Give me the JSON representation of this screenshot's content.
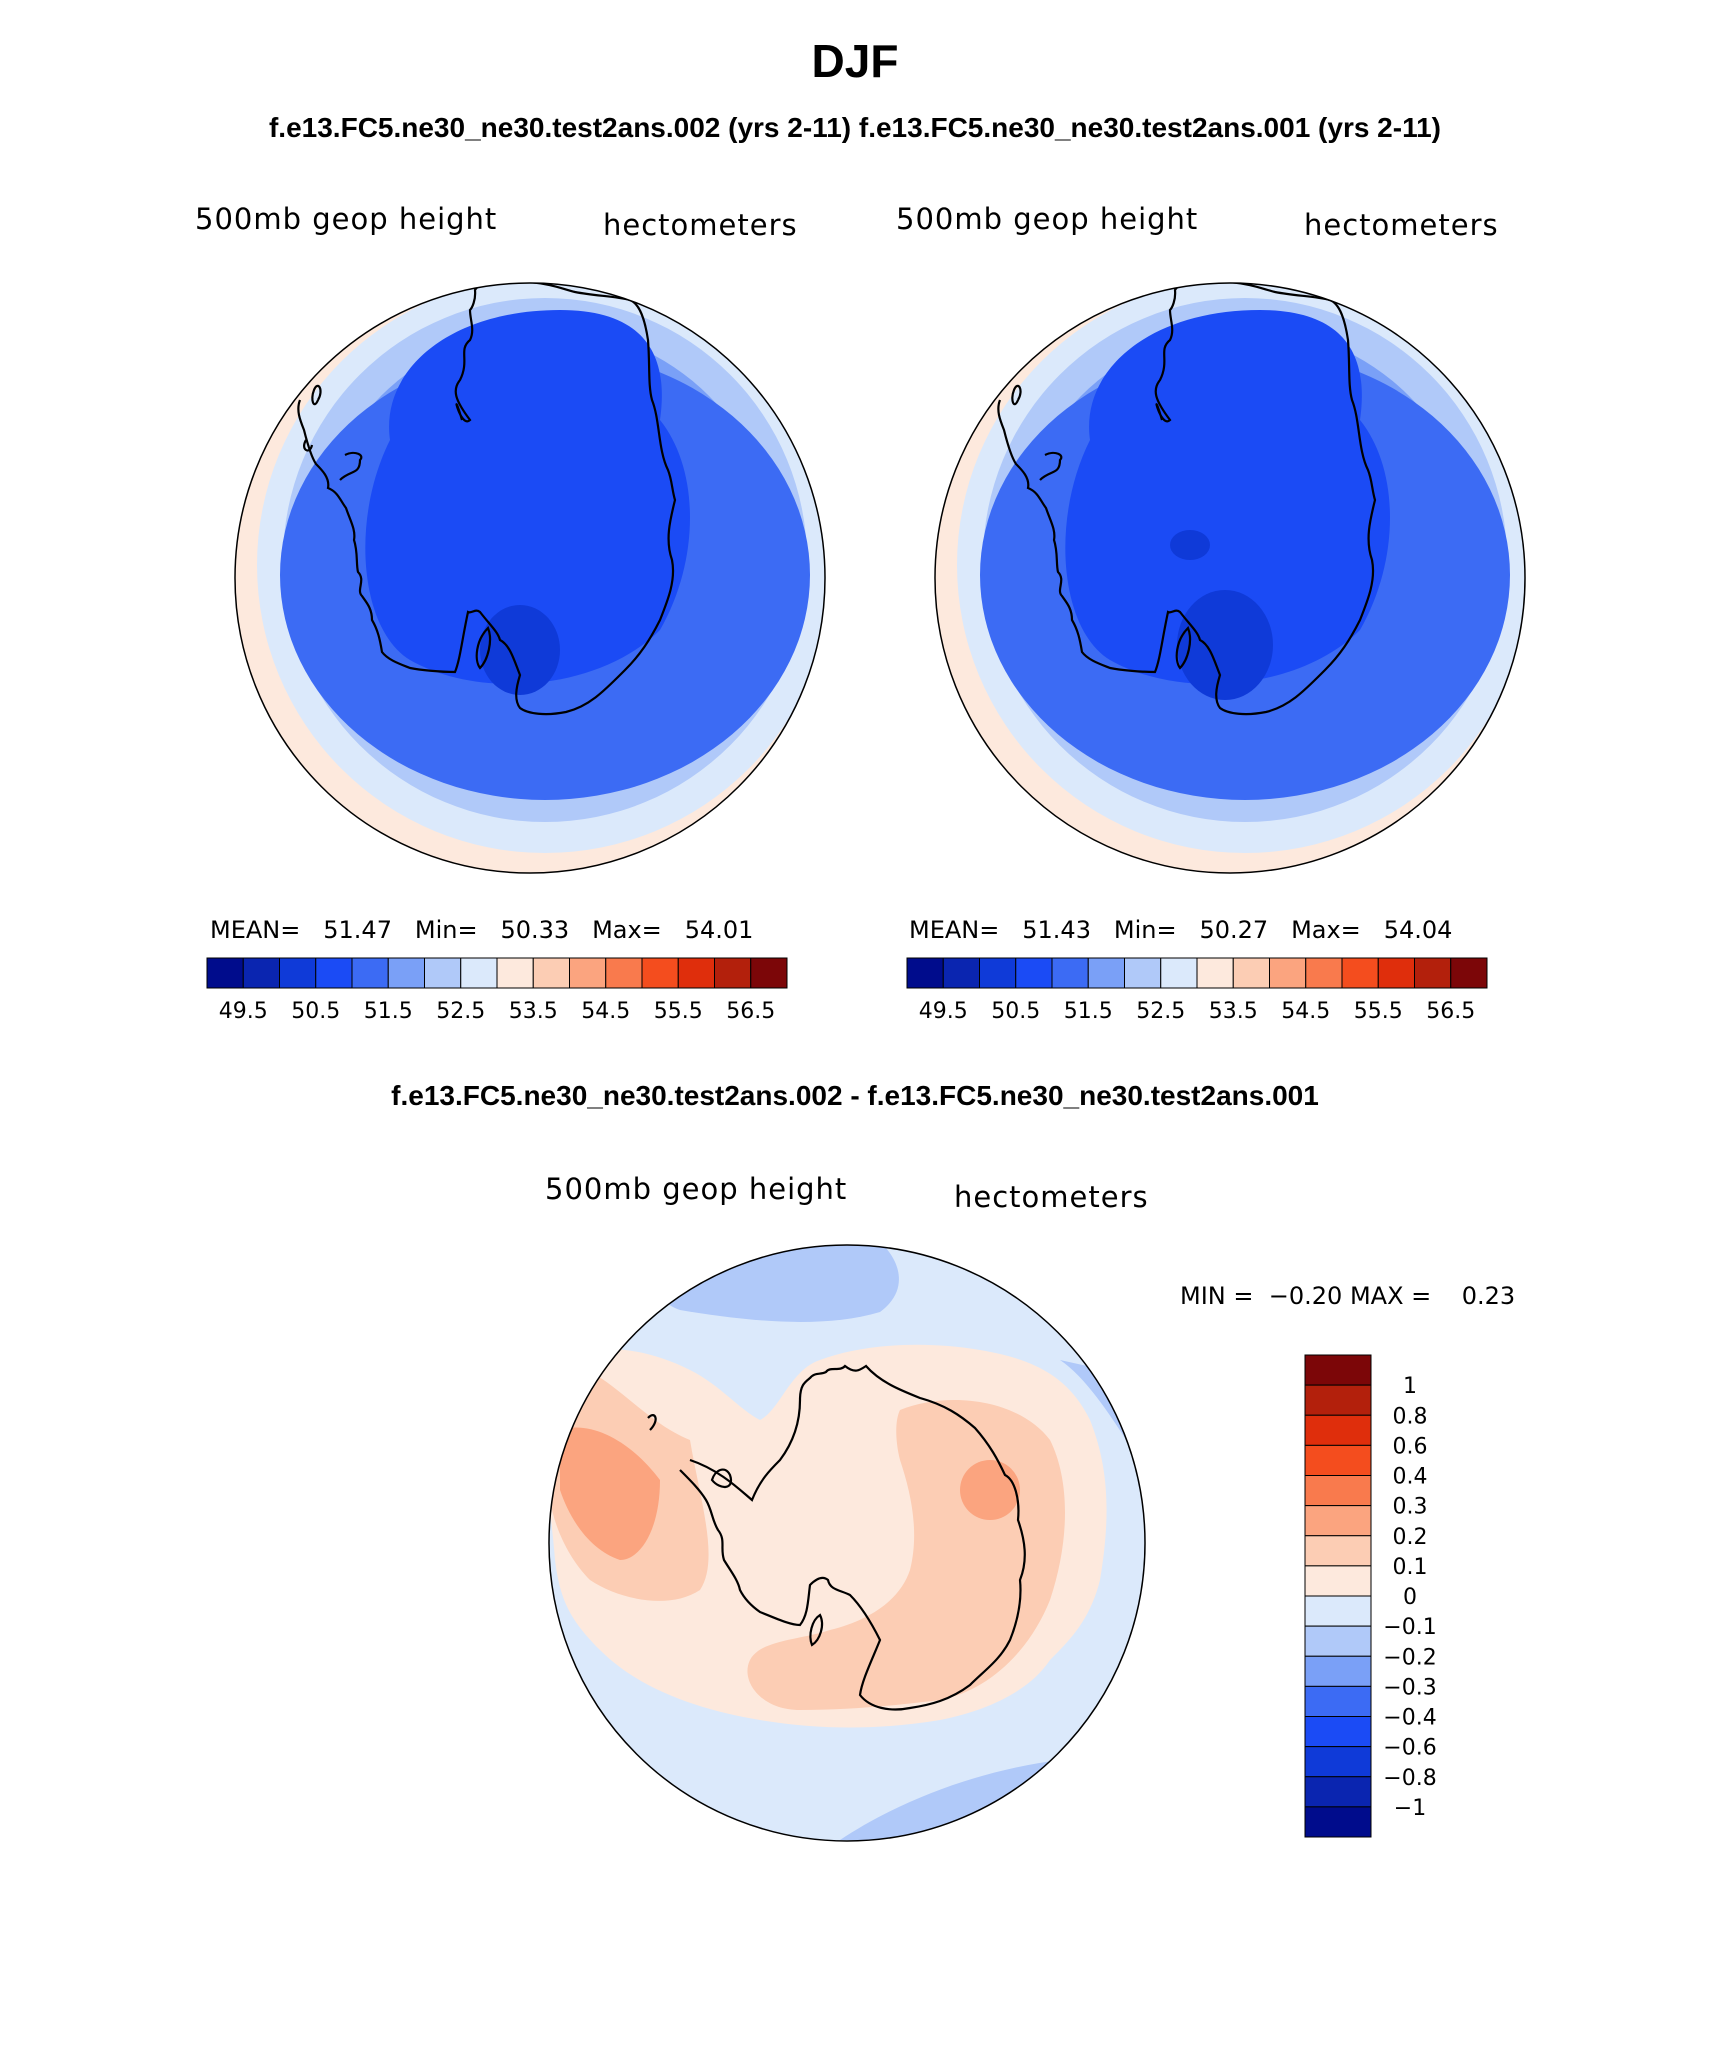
{
  "page": {
    "title": "DJF",
    "subtitle": "f.e13.FC5.ne30_ne30.test2ans.002 (yrs 2-11) f.e13.FC5.ne30_ne30.test2ans.001 (yrs 2-11)",
    "diff_title": "f.e13.FC5.ne30_ne30.test2ans.002 - f.e13.FC5.ne30_ne30.test2ans.001"
  },
  "colors": {
    "abs_scale": [
      "#000c8c",
      "#0a25b0",
      "#0f3ad8",
      "#1b4bf5",
      "#3c6bf4",
      "#7aa0f7",
      "#b0c9f9",
      "#dbe9fb",
      "#fde9dd",
      "#fccdb4",
      "#fba47f",
      "#f97a4d",
      "#f44d1e",
      "#df2e0c",
      "#b3200c",
      "#7c0608"
    ],
    "diff_scale": [
      "#7c0608",
      "#b3200c",
      "#df2e0c",
      "#f44d1e",
      "#f97a4d",
      "#fba47f",
      "#fccdb4",
      "#fde9dd",
      "#dbe9fb",
      "#b0c9f9",
      "#7aa0f7",
      "#3c6bf4",
      "#1b4bf5",
      "#0f3ad8",
      "#0a25b0",
      "#000c8c"
    ],
    "coastline": "#000000"
  },
  "chart_data": [
    {
      "type": "heatmap",
      "panel": "case",
      "projection": "south-polar-stereographic",
      "variable_label": "500mb geop height",
      "units_label": "hectometers",
      "mean_label": "MEAN=",
      "mean": "51.47",
      "min_label": "Min=",
      "min": "50.33",
      "max_label": "Max=",
      "max": "54.01",
      "colorbar_ticks": [
        "49.5",
        "50.5",
        "51.5",
        "52.5",
        "53.5",
        "54.5",
        "55.5",
        "56.5"
      ],
      "contour_levels": [
        49.5,
        50,
        50.5,
        51,
        51.5,
        52,
        52.5,
        53,
        53.5,
        54,
        54.5,
        55,
        55.5,
        56,
        56.5
      ]
    },
    {
      "type": "heatmap",
      "panel": "control",
      "projection": "south-polar-stereographic",
      "variable_label": "500mb geop height",
      "units_label": "hectometers",
      "mean_label": "MEAN=",
      "mean": "51.43",
      "min_label": "Min=",
      "min": "50.27",
      "max_label": "Max=",
      "max": "54.04",
      "colorbar_ticks": [
        "49.5",
        "50.5",
        "51.5",
        "52.5",
        "53.5",
        "54.5",
        "55.5",
        "56.5"
      ],
      "contour_levels": [
        49.5,
        50,
        50.5,
        51,
        51.5,
        52,
        52.5,
        53,
        53.5,
        54,
        54.5,
        55,
        55.5,
        56,
        56.5
      ]
    },
    {
      "type": "heatmap",
      "panel": "difference",
      "projection": "south-polar-stereographic",
      "variable_label": "500mb geop height",
      "units_label": "hectometers",
      "min_label": "MIN =",
      "min": "−0.20",
      "max_label": "MAX =",
      "max": "0.23",
      "colorbar_ticks": [
        "1",
        "0.8",
        "0.6",
        "0.4",
        "0.3",
        "0.2",
        "0.1",
        "0",
        "−0.1",
        "−0.2",
        "−0.3",
        "−0.4",
        "−0.6",
        "−0.8",
        "−1"
      ]
    }
  ]
}
